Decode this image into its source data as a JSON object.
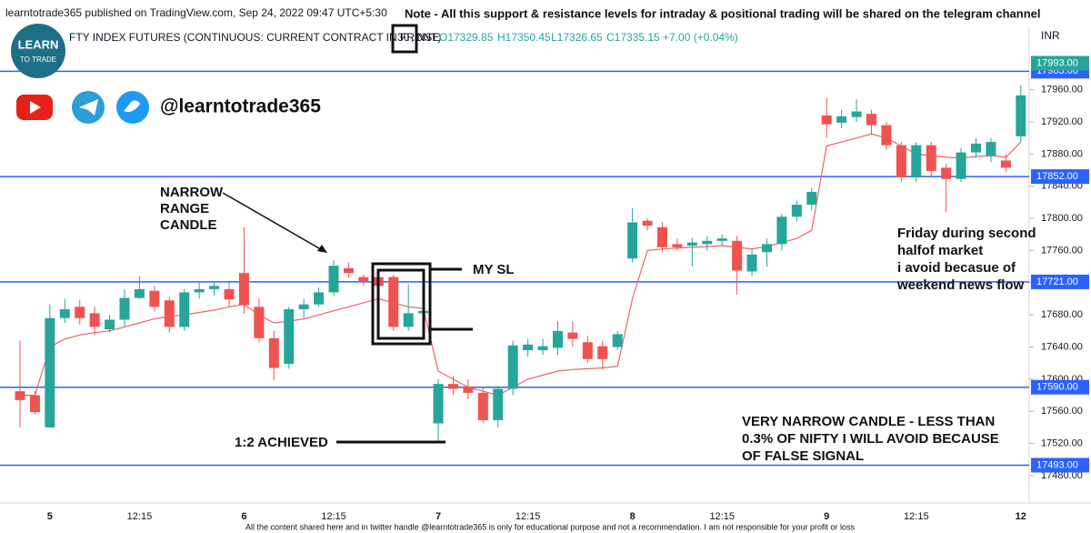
{
  "header": {
    "publisher": "learntotrade365 published on TradingView.com, Sep 24, 2022 09:47 UTC+5:30",
    "note": "Note - All this support & resistance levels for intraday & positional trading will be shared on the telegram channel",
    "symbol": "FTY INDEX FUTURES (CONTINUOUS: CURRENT CONTRACT IN FRONT)",
    "interval": "30",
    "exchange": ", NSE",
    "open": "O17329.85",
    "high": "H17350.45",
    "low": "L17326.65",
    "close": "C17335.15",
    "change": "+7.00 (+0.04%)",
    "currency": "INR"
  },
  "branding": {
    "logo_top": "LEARN",
    "logo_bottom": "TO TRADE",
    "handle": "@learntotrade365"
  },
  "annotations": {
    "narrow": [
      "NARROW",
      "RANGE",
      "CANDLE"
    ],
    "sl": "MY SL",
    "target": "1:2 ACHIEVED",
    "friday": [
      "Friday during second",
      "halfof  market",
      "i avoid becasue of",
      "weekend news flow"
    ],
    "very_narrow": [
      "VERY NARROW CANDLE - LESS THAN",
      "0.3% OF NIFTY I WILL AVOID BECAUSE",
      "OF FALSE SIGNAL"
    ]
  },
  "footer": "All the content shared here and in twitter handle @learntotrade365 is only for educational purpose and not a recommendation. I am not responsible for your profit or loss",
  "chart_data": {
    "type": "candlestick",
    "categories": [
      null,
      null,
      "5",
      null,
      null,
      null,
      null,
      null,
      "12:15",
      null,
      null,
      null,
      null,
      null,
      null,
      "6",
      null,
      null,
      null,
      null,
      null,
      "12:15",
      null,
      null,
      null,
      null,
      null,
      null,
      "7",
      null,
      null,
      null,
      null,
      null,
      "12:15",
      null,
      null,
      null,
      null,
      null,
      null,
      "8",
      null,
      null,
      null,
      null,
      null,
      "12:15",
      null,
      null,
      null,
      null,
      null,
      null,
      "9",
      null,
      null,
      null,
      null,
      null,
      "12:15",
      null,
      null,
      null,
      null,
      null,
      null,
      "12"
    ],
    "open": [
      17585,
      17580,
      17540,
      17676,
      17690,
      17682,
      17662,
      17674,
      17701,
      17710,
      17698,
      17665,
      17708,
      17712,
      17712,
      17732,
      17690,
      17651,
      17619,
      17687,
      17693,
      17708,
      17738,
      17727,
      17727,
      17727,
      17665,
      17682,
      17545,
      17594,
      17591,
      17583,
      17549,
      17588,
      17636,
      17636,
      17639,
      17658,
      17646,
      17641,
      17640,
      17750,
      17797,
      17789,
      17768,
      17766,
      17768,
      17772,
      17772,
      17734,
      17758,
      17768,
      17802,
      17817,
      17928,
      17919,
      17926,
      17930,
      17916,
      17891,
      17851,
      17891,
      17863,
      17849,
      17882,
      17878,
      17872,
      17902
    ],
    "high": [
      17648,
      17585,
      17693,
      17700,
      17698,
      17690,
      17680,
      17712,
      17728,
      17716,
      17702,
      17712,
      17720,
      17722,
      17720,
      17789,
      17700,
      17660,
      17690,
      17700,
      17714,
      17748,
      17745,
      17730,
      17734,
      17730,
      17718,
      17690,
      17600,
      17604,
      17600,
      17590,
      17592,
      17648,
      17650,
      17650,
      17672,
      17672,
      17654,
      17648,
      17660,
      17813,
      17800,
      17795,
      17775,
      17776,
      17778,
      17780,
      17778,
      17762,
      17775,
      17806,
      17822,
      17838,
      17950,
      17935,
      17948,
      17935,
      17920,
      17895,
      17895,
      17895,
      17868,
      17888,
      17900,
      17900,
      17880,
      17966
    ],
    "low": [
      17540,
      17556,
      17540,
      17670,
      17668,
      17655,
      17658,
      17665,
      17700,
      17684,
      17658,
      17660,
      17700,
      17704,
      17690,
      17681,
      17646,
      17599,
      17613,
      17676,
      17690,
      17704,
      17726,
      17716,
      17710,
      17660,
      17660,
      17680,
      17523,
      17580,
      17575,
      17545,
      17540,
      17580,
      17628,
      17630,
      17630,
      17640,
      17620,
      17612,
      17636,
      17745,
      17785,
      17758,
      17760,
      17740,
      17760,
      17766,
      17705,
      17728,
      17740,
      17760,
      17796,
      17810,
      17900,
      17912,
      17920,
      17904,
      17885,
      17845,
      17845,
      17852,
      17808,
      17845,
      17875,
      17870,
      17858,
      17895
    ],
    "close": [
      17574,
      17559,
      17676,
      17687,
      17676,
      17665,
      17674,
      17701,
      17712,
      17690,
      17665,
      17708,
      17712,
      17716,
      17699,
      17692,
      17651,
      17614,
      17687,
      17693,
      17708,
      17741,
      17732,
      17721,
      17716,
      17665,
      17682,
      17685,
      17594,
      17588,
      17583,
      17549,
      17588,
      17642,
      17643,
      17641,
      17660,
      17650,
      17625,
      17625,
      17656,
      17795,
      17791,
      17764,
      17764,
      17770,
      17772,
      17775,
      17735,
      17755,
      17768,
      17802,
      17817,
      17833,
      17917,
      17927,
      17933,
      17916,
      17891,
      17851,
      17891,
      17859,
      17849,
      17882,
      17893,
      17895,
      17863,
      17953
    ],
    "up_color": "#26a69a",
    "down_color": "#ef5350",
    "overlay": {
      "color": "#f0626a",
      "values": [
        17580,
        17580,
        17640,
        17650,
        17655,
        17658,
        17660,
        17665,
        17670,
        17675,
        17678,
        17680,
        17683,
        17686,
        17690,
        17693,
        17680,
        17670,
        17672,
        17675,
        17680,
        17685,
        17690,
        17695,
        17700,
        17695,
        17690,
        17688,
        17610,
        17600,
        17590,
        17585,
        17580,
        17590,
        17600,
        17605,
        17610,
        17612,
        17613,
        17614,
        17616,
        17700,
        17760,
        17762,
        17763,
        17764,
        17765,
        17766,
        17764,
        17762,
        17765,
        17770,
        17775,
        17785,
        17890,
        17895,
        17900,
        17905,
        17900,
        17890,
        17880,
        17878,
        17876,
        17875,
        17877,
        17878,
        17876,
        17895
      ]
    },
    "ylim": [
      17446,
      18006
    ],
    "yticks": [
      {
        "value": 17480,
        "label": "17480.00"
      },
      {
        "value": 17520,
        "label": "17520.00"
      },
      {
        "value": 17560,
        "label": "17560.00"
      },
      {
        "value": 17600,
        "label": "17600.00"
      },
      {
        "value": 17640,
        "label": "17640.00"
      },
      {
        "value": 17680,
        "label": "17680.00"
      },
      {
        "value": 17720,
        "label": "17720.00"
      },
      {
        "value": 17760,
        "label": "17760.00"
      },
      {
        "value": 17800,
        "label": "17800.00"
      },
      {
        "value": 17840,
        "label": "17840.00"
      },
      {
        "value": 17880,
        "label": "17880.00"
      },
      {
        "value": 17920,
        "label": "17920.00"
      },
      {
        "value": 17960,
        "label": "17960.00"
      }
    ],
    "levels": [
      {
        "value": 17983,
        "label": "17983.00"
      },
      {
        "value": 17852,
        "label": "17852.00"
      },
      {
        "value": 17721,
        "label": "17721.00"
      },
      {
        "value": 17590,
        "label": "17590.00"
      },
      {
        "value": 17493,
        "label": "17493.00"
      }
    ],
    "level_color": "#2962ff",
    "last_price": {
      "value": 17993,
      "label": "17993.00"
    }
  }
}
